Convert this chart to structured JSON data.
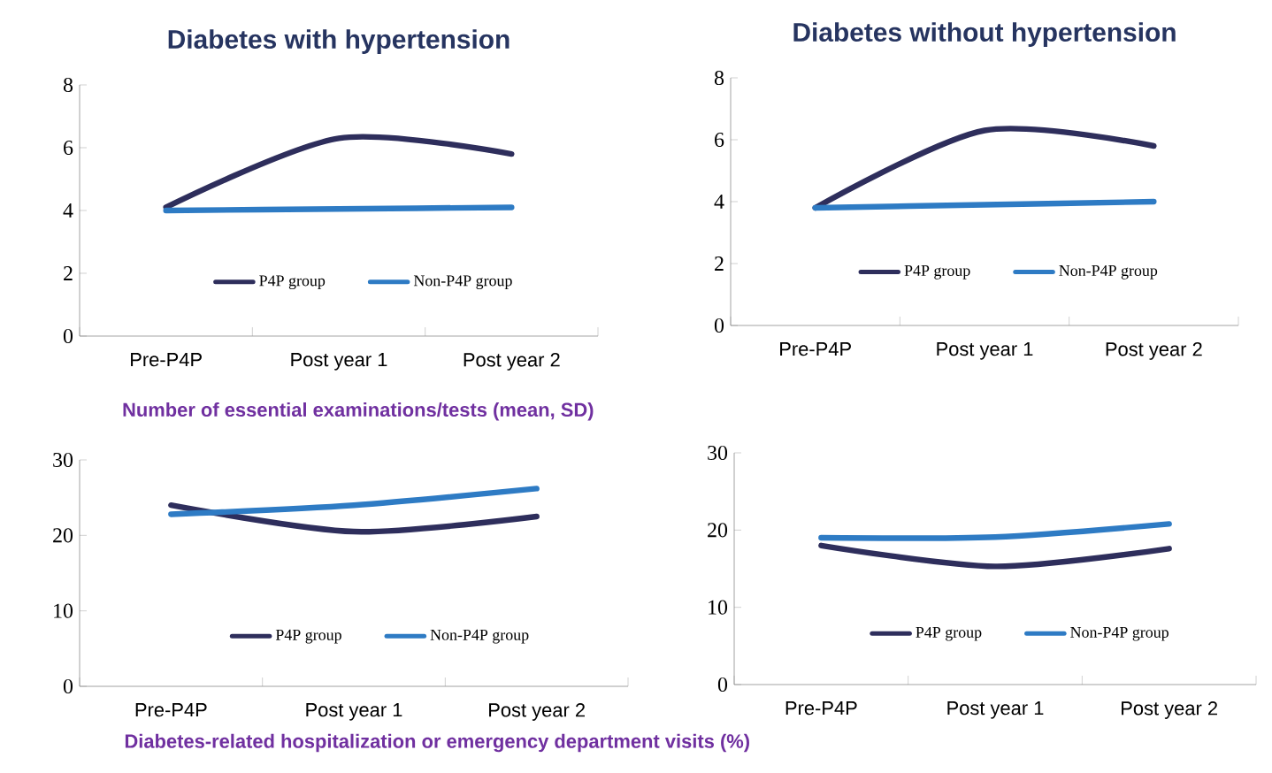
{
  "chart_data": [
    {
      "type": "line",
      "title": "Diabetes with hypertension",
      "categories": [
        "Pre-P4P",
        "Post year 1",
        "Post year 2"
      ],
      "ylim": [
        0,
        8
      ],
      "yticks": [
        0,
        2,
        4,
        6,
        8
      ],
      "legend": "bottom",
      "series": [
        {
          "name": "P4P group",
          "color": "#2e2e5c",
          "values": [
            4.1,
            6.3,
            5.8
          ]
        },
        {
          "name": "Non-P4P group",
          "color": "#2e7bc4",
          "values": [
            4.0,
            4.05,
            4.1
          ]
        }
      ],
      "annotations": [
        "Number of essential examinations/tests  (mean, SD)"
      ]
    },
    {
      "type": "line",
      "title": "Diabetes without hypertension",
      "categories": [
        "Pre-P4P",
        "Post year 1",
        "Post year 2"
      ],
      "ylim": [
        0,
        8
      ],
      "yticks": [
        0,
        2,
        4,
        6,
        8
      ],
      "legend": "bottom",
      "series": [
        {
          "name": "P4P group",
          "color": "#2e2e5c",
          "values": [
            3.8,
            6.3,
            5.8
          ]
        },
        {
          "name": "Non-P4P group",
          "color": "#2e7bc4",
          "values": [
            3.8,
            3.9,
            4.0
          ]
        }
      ]
    },
    {
      "type": "line",
      "categories": [
        "Pre-P4P",
        "Post year 1",
        "Post year 2"
      ],
      "ylim": [
        0,
        30
      ],
      "yticks": [
        0,
        10,
        20,
        30
      ],
      "legend": "bottom",
      "series": [
        {
          "name": "P4P group",
          "color": "#2e2e5c",
          "values": [
            24,
            20.5,
            22.5
          ]
        },
        {
          "name": "Non-P4P group",
          "color": "#2e7bc4",
          "values": [
            22.8,
            24,
            26.2
          ]
        }
      ],
      "annotations": [
        "Diabetes-related hospitalization or emergency department visits  (%)"
      ]
    },
    {
      "type": "line",
      "categories": [
        "Pre-P4P",
        "Post year 1",
        "Post year 2"
      ],
      "ylim": [
        0,
        30
      ],
      "yticks": [
        0,
        10,
        20,
        30
      ],
      "legend": "bottom",
      "series": [
        {
          "name": "P4P group",
          "color": "#2e2e5c",
          "values": [
            18,
            15.3,
            17.6
          ]
        },
        {
          "name": "Non-P4P group",
          "color": "#2e7bc4",
          "values": [
            19,
            19.1,
            20.8
          ]
        }
      ]
    }
  ]
}
